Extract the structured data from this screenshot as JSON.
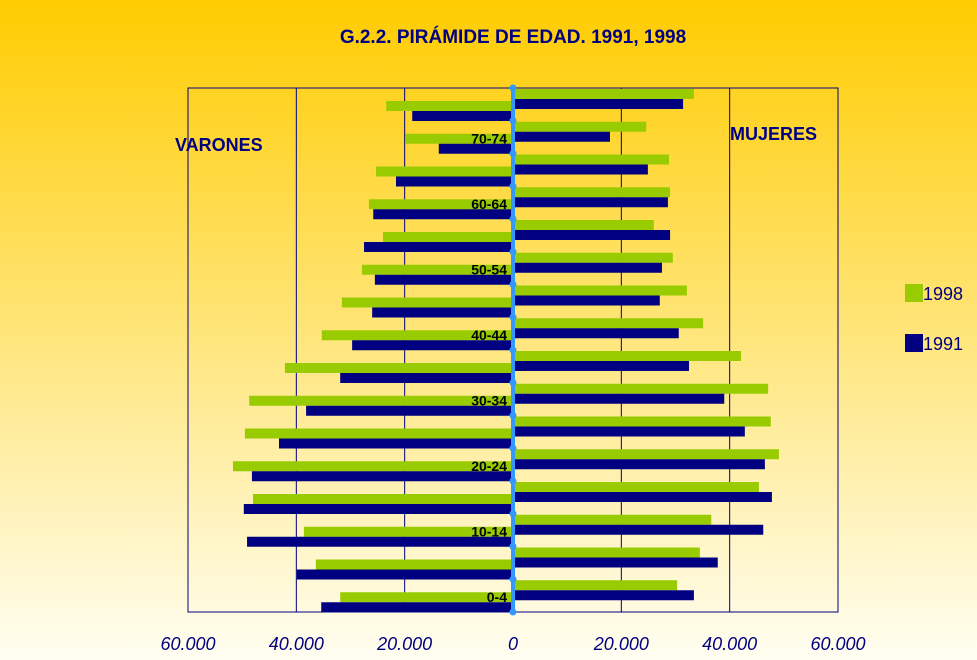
{
  "chart_data": {
    "type": "pyramid",
    "title": "G.2.2.  PIRÁMIDE DE EDAD. 1991, 1998",
    "left_label": "VARONES",
    "right_label": "MUJERES",
    "categories": [
      "0-4",
      null,
      "10-14",
      null,
      "20-24",
      null,
      "30-34",
      null,
      "40-44",
      null,
      "50-54",
      null,
      "60-64",
      null,
      "70-74",
      null
    ],
    "series": [
      {
        "name": "1998",
        "color": "#99cc00",
        "men": [
          31900,
          36400,
          38600,
          48000,
          51700,
          49500,
          48700,
          42100,
          35300,
          31600,
          27900,
          24000,
          26600,
          25300,
          19900,
          23400
        ],
        "women": [
          30300,
          34500,
          36600,
          45400,
          49100,
          47600,
          47100,
          42100,
          35100,
          32100,
          29500,
          26000,
          29000,
          28800,
          24600,
          33400
        ]
      },
      {
        "name": "1991",
        "color": "#000080",
        "men": [
          35400,
          39900,
          49100,
          49700,
          48200,
          43200,
          38200,
          31900,
          29700,
          26000,
          25500,
          27500,
          25800,
          21600,
          13700,
          18600
        ],
        "women": [
          33400,
          37800,
          46200,
          47800,
          46500,
          42800,
          39000,
          32500,
          30600,
          27100,
          27500,
          29000,
          28600,
          24900,
          17900,
          31400
        ]
      }
    ],
    "xlim": [
      -60000,
      60000
    ],
    "xticks": [
      {
        "value": -60000,
        "label": "60.000"
      },
      {
        "value": -40000,
        "label": "40.000"
      },
      {
        "value": -20000,
        "label": "20.000"
      },
      0,
      {
        "value": 20000,
        "label": "20.000"
      },
      {
        "value": 40000,
        "label": "40.000"
      },
      {
        "value": 60000,
        "label": "60.000"
      }
    ],
    "grid": true,
    "legend": "right"
  }
}
